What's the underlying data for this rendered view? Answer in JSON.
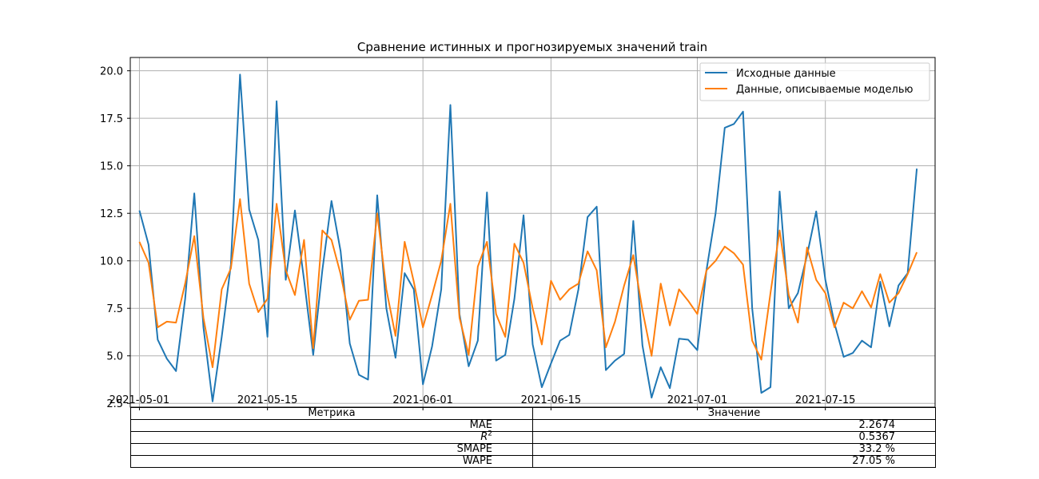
{
  "chart_data": {
    "type": "line",
    "title": "Сравнение истинных и прогнозируемых значений train",
    "xlabel": "",
    "ylabel": "",
    "x_start": "2021-05-01",
    "x_end": "2021-07-26",
    "xlim": [
      "2021-04-30",
      "2021-07-27"
    ],
    "ylim": [
      2.3,
      20.7
    ],
    "x_ticks": [
      "2021-05-01",
      "2021-05-15",
      "2021-06-01",
      "2021-06-15",
      "2021-07-01",
      "2021-07-15"
    ],
    "y_ticks": [
      2.5,
      5.0,
      7.5,
      10.0,
      12.5,
      15.0,
      17.5,
      20.0
    ],
    "y_tick_labels": [
      "2.5",
      "5.0",
      "7.5",
      "10.0",
      "12.5",
      "15.0",
      "17.5",
      "20.0"
    ],
    "grid": true,
    "legend_position": "top-right",
    "series": [
      {
        "name": "Исходные данные",
        "color": "#1f77b4",
        "values": [
          12.65,
          10.85,
          5.85,
          4.85,
          4.2,
          8.0,
          13.55,
          6.5,
          2.6,
          6.0,
          9.8,
          19.8,
          12.7,
          11.1,
          6.0,
          18.4,
          9.0,
          12.65,
          9.0,
          5.05,
          9.5,
          13.15,
          10.5,
          5.65,
          4.0,
          3.75,
          13.45,
          7.5,
          4.9,
          9.35,
          8.5,
          3.5,
          5.5,
          8.5,
          18.2,
          7.2,
          4.45,
          5.8,
          13.6,
          4.75,
          5.05,
          8.0,
          12.4,
          5.6,
          3.35,
          4.6,
          5.8,
          6.1,
          8.5,
          12.3,
          12.85,
          4.25,
          4.75,
          5.1,
          12.1,
          5.55,
          2.8,
          4.4,
          3.3,
          5.9,
          5.85,
          5.3,
          9.5,
          12.5,
          17.0,
          17.2,
          17.85,
          7.5,
          3.05,
          3.35,
          13.65,
          7.5,
          8.3,
          10.3,
          12.6,
          9.0,
          6.7,
          4.95,
          5.15,
          5.8,
          5.45,
          8.9,
          6.55,
          8.7,
          9.35,
          14.85
        ]
      },
      {
        "name": "Данные, описываемые моделью",
        "color": "#ff7f0e",
        "values": [
          11.0,
          9.9,
          6.5,
          6.8,
          6.75,
          8.8,
          11.3,
          7.0,
          4.4,
          8.5,
          9.6,
          13.25,
          8.8,
          7.3,
          8.0,
          13.0,
          9.5,
          8.2,
          11.1,
          5.4,
          11.6,
          11.1,
          9.3,
          6.9,
          7.9,
          7.95,
          12.5,
          8.5,
          6.05,
          11.0,
          8.9,
          6.5,
          8.2,
          10.0,
          13.0,
          7.0,
          5.05,
          9.7,
          11.0,
          7.2,
          6.0,
          10.9,
          9.9,
          7.5,
          5.6,
          8.95,
          7.95,
          8.5,
          8.8,
          10.5,
          9.5,
          5.45,
          6.8,
          8.7,
          10.3,
          7.4,
          5.0,
          8.8,
          6.6,
          8.5,
          7.9,
          7.2,
          9.5,
          10.0,
          10.75,
          10.4,
          9.8,
          5.8,
          4.8,
          8.3,
          11.6,
          8.2,
          6.75,
          10.7,
          9.0,
          8.3,
          6.5,
          7.8,
          7.5,
          8.4,
          7.55,
          9.3,
          7.8,
          8.3,
          9.3,
          10.45
        ]
      }
    ]
  },
  "table": {
    "headers": [
      "Метрика",
      "Значение"
    ],
    "rows": [
      {
        "metric": "MAE",
        "value": "2.2674"
      },
      {
        "metric": "R",
        "metric_sup": "2",
        "value": "0.5367"
      },
      {
        "metric": "SMAPE",
        "value": "33.2 %"
      },
      {
        "metric": "WAPE",
        "value": "27.05 %"
      }
    ]
  }
}
